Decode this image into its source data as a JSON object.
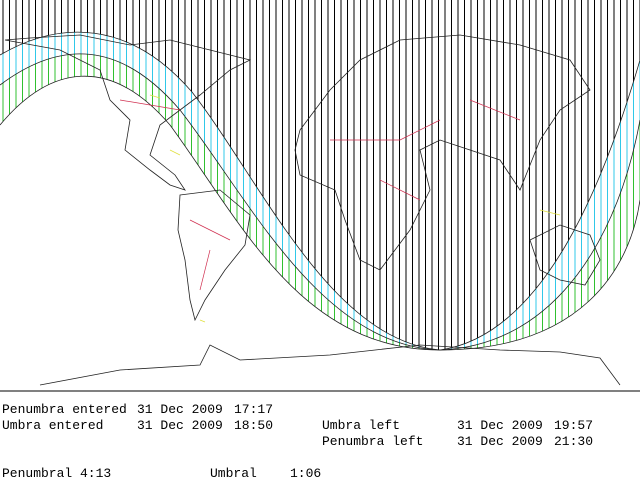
{
  "events": [
    {
      "label": "Penumbra entered",
      "date": "31 Dec 2009",
      "time": "17:17"
    },
    {
      "label": "Umbra entered",
      "date": "31 Dec 2009",
      "time": "18:50"
    },
    {
      "label": "Umbra left",
      "date": "31 Dec 2009",
      "time": "19:57"
    },
    {
      "label": "Penumbra left",
      "date": "31 Dec 2009",
      "time": "21:30"
    }
  ],
  "durations": [
    {
      "label": "Penumbral",
      "value": "4:13"
    },
    {
      "label": "Umbral",
      "value": "1:06"
    }
  ]
}
